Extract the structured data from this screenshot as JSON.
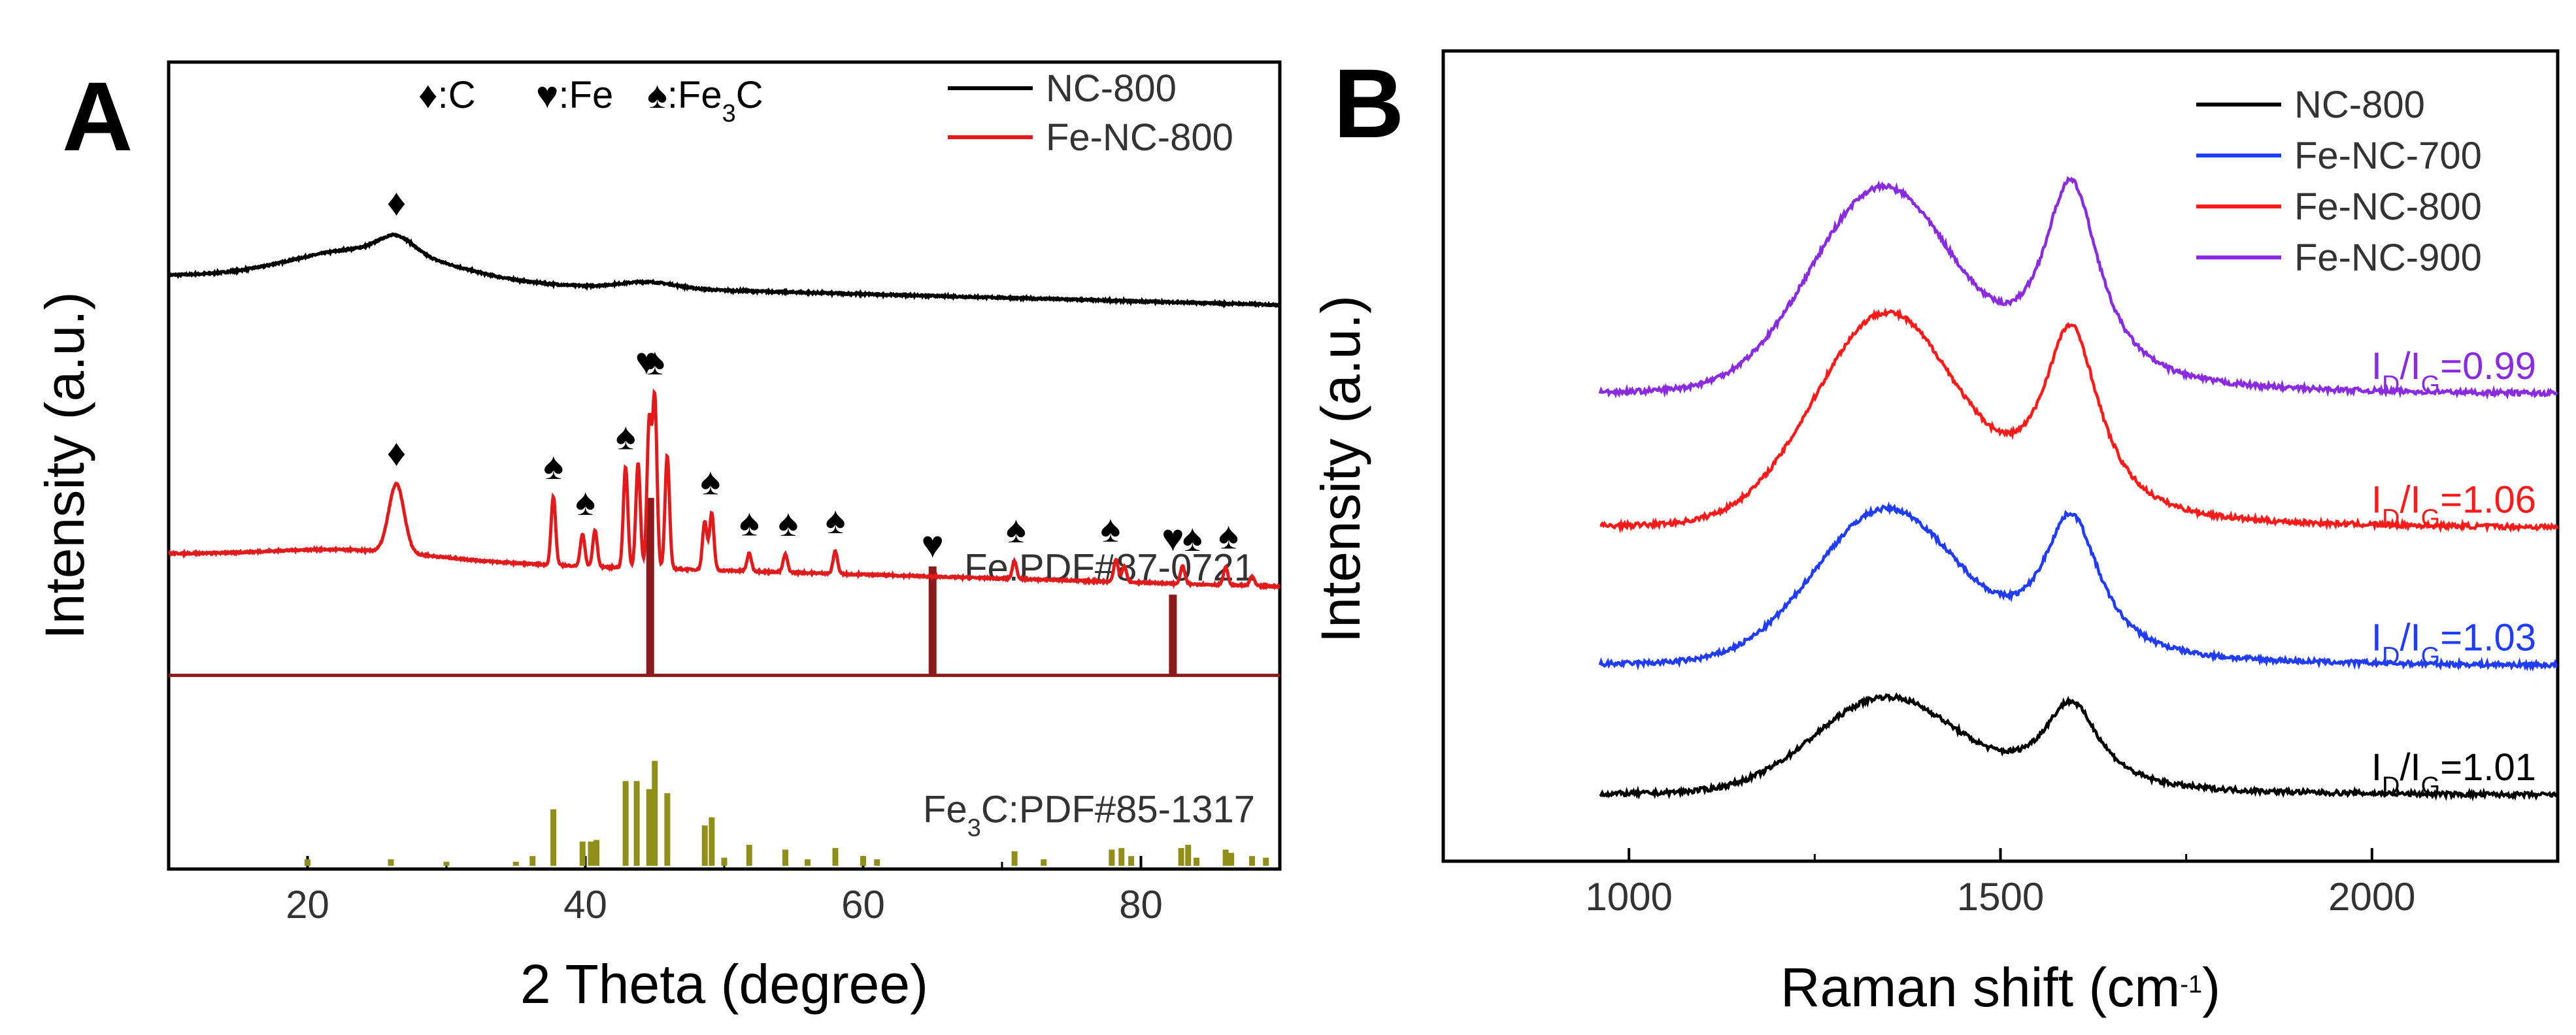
{
  "chart_data": [
    {
      "panel": "A",
      "type": "line",
      "xlabel": "2 Theta (degree)",
      "ylabel": "Intensity (a.u.)",
      "xlim": [
        10,
        90
      ],
      "xticks": [
        20,
        40,
        60,
        80
      ],
      "grid": false,
      "legend": {
        "placement": "top-right",
        "entries": [
          {
            "label": "NC-800",
            "color": "#000000"
          },
          {
            "label": "Fe-NC-800",
            "color": "#e31a1c"
          }
        ]
      },
      "marker_legend": [
        {
          "symbol": "♦",
          "label": ":C"
        },
        {
          "symbol": "♥",
          "label": ":Fe"
        },
        {
          "symbol": "♠",
          "label": ":Fe",
          "label_sub": "3",
          "label_tail": "C"
        }
      ],
      "series": [
        {
          "name": "NC-800",
          "color": "#000000",
          "offset": 0.735,
          "baseline": 0.0,
          "broad_peaks": [
            {
              "x": 24.5,
              "h": 0.04,
              "w": 5.5
            },
            {
              "x": 26.4,
              "h": 0.02,
              "w": 1.2
            },
            {
              "x": 44.5,
              "h": 0.008,
              "w": 2.0
            }
          ],
          "slope": -0.00045
        },
        {
          "name": "Fe-NC-800",
          "color": "#e31a1c",
          "offset": 0.39,
          "baseline": 0.0,
          "broad_peaks": [
            {
              "x": 23.0,
              "h": 0.012,
              "w": 6.0
            },
            {
              "x": 26.4,
              "h": 0.085,
              "w": 0.55
            }
          ],
          "sharp_peaks": [
            {
              "x": 37.7,
              "h": 0.085
            },
            {
              "x": 39.8,
              "h": 0.04
            },
            {
              "x": 40.7,
              "h": 0.045
            },
            {
              "x": 42.9,
              "h": 0.125
            },
            {
              "x": 43.8,
              "h": 0.13
            },
            {
              "x": 44.6,
              "h": 0.18
            },
            {
              "x": 45.0,
              "h": 0.21
            },
            {
              "x": 45.9,
              "h": 0.14
            },
            {
              "x": 48.6,
              "h": 0.06
            },
            {
              "x": 49.1,
              "h": 0.07
            },
            {
              "x": 51.8,
              "h": 0.022
            },
            {
              "x": 54.4,
              "h": 0.022
            },
            {
              "x": 58.0,
              "h": 0.028
            },
            {
              "x": 70.9,
              "h": 0.022
            },
            {
              "x": 78.2,
              "h": 0.028
            },
            {
              "x": 78.8,
              "h": 0.02
            },
            {
              "x": 83.0,
              "h": 0.022
            },
            {
              "x": 86.1,
              "h": 0.022
            },
            {
              "x": 88.0,
              "h": 0.012
            }
          ],
          "slope": -0.0005
        }
      ],
      "peak_markers": [
        {
          "x": 26.4,
          "symbol": "♦",
          "series": "NC-800"
        },
        {
          "x": 26.4,
          "symbol": "♦",
          "series": "Fe-NC-800"
        },
        {
          "x": 37.7,
          "symbol": "♠"
        },
        {
          "x": 40.0,
          "symbol": "♠"
        },
        {
          "x": 42.9,
          "symbol": "♠"
        },
        {
          "x": 44.4,
          "symbol": "♥"
        },
        {
          "x": 45.0,
          "symbol": "♠"
        },
        {
          "x": 49.0,
          "symbol": "♠"
        },
        {
          "x": 51.8,
          "symbol": "♠"
        },
        {
          "x": 54.6,
          "symbol": "♠"
        },
        {
          "x": 58.0,
          "symbol": "♠"
        },
        {
          "x": 65.0,
          "symbol": "♥"
        },
        {
          "x": 71.0,
          "symbol": "♠"
        },
        {
          "x": 77.8,
          "symbol": "♠"
        },
        {
          "x": 82.3,
          "symbol": "♥"
        },
        {
          "x": 83.7,
          "symbol": "♠"
        },
        {
          "x": 86.3,
          "symbol": "♠"
        }
      ],
      "reference_patterns": [
        {
          "label": "Fe:PDF#87-0721",
          "color": "#8b1a1a",
          "baseline": 0.24,
          "lines": [
            {
              "x": 44.67,
              "h": 0.22
            },
            {
              "x": 65.0,
              "h": 0.135
            },
            {
              "x": 82.3,
              "h": 0.1
            }
          ]
        },
        {
          "label_pre": "Fe",
          "label_sub": "3",
          "label_post": "C:PDF#85-1317",
          "color": "#8f8f1a",
          "baseline": 0.0,
          "lines": [
            {
              "x": 20.0,
              "h": 0.008
            },
            {
              "x": 26.0,
              "h": 0.008
            },
            {
              "x": 30.0,
              "h": 0.005
            },
            {
              "x": 35.0,
              "h": 0.005
            },
            {
              "x": 36.2,
              "h": 0.012
            },
            {
              "x": 37.7,
              "h": 0.07
            },
            {
              "x": 39.8,
              "h": 0.03
            },
            {
              "x": 40.4,
              "h": 0.03
            },
            {
              "x": 40.8,
              "h": 0.032
            },
            {
              "x": 42.9,
              "h": 0.105
            },
            {
              "x": 43.7,
              "h": 0.105
            },
            {
              "x": 44.6,
              "h": 0.095
            },
            {
              "x": 45.0,
              "h": 0.13
            },
            {
              "x": 45.9,
              "h": 0.09
            },
            {
              "x": 48.6,
              "h": 0.05
            },
            {
              "x": 49.1,
              "h": 0.06
            },
            {
              "x": 50.0,
              "h": 0.01
            },
            {
              "x": 51.8,
              "h": 0.026
            },
            {
              "x": 54.4,
              "h": 0.02
            },
            {
              "x": 56.0,
              "h": 0.008
            },
            {
              "x": 58.0,
              "h": 0.022
            },
            {
              "x": 60.0,
              "h": 0.012
            },
            {
              "x": 61.0,
              "h": 0.008
            },
            {
              "x": 70.9,
              "h": 0.018
            },
            {
              "x": 73.0,
              "h": 0.008
            },
            {
              "x": 77.9,
              "h": 0.02
            },
            {
              "x": 78.6,
              "h": 0.022
            },
            {
              "x": 79.3,
              "h": 0.012
            },
            {
              "x": 82.9,
              "h": 0.022
            },
            {
              "x": 83.4,
              "h": 0.026
            },
            {
              "x": 84.0,
              "h": 0.01
            },
            {
              "x": 86.1,
              "h": 0.02
            },
            {
              "x": 86.5,
              "h": 0.016
            },
            {
              "x": 88.0,
              "h": 0.012
            },
            {
              "x": 89.0,
              "h": 0.01
            }
          ]
        }
      ]
    },
    {
      "panel": "B",
      "type": "line",
      "xlabel": "Raman shift (cm",
      "xlabel_sup": "-1",
      "xlabel_tail": ")",
      "ylabel": "Intensity (a.u.)",
      "xlim": [
        750,
        2250
      ],
      "xticks": [
        1000,
        1500,
        2000
      ],
      "grid": false,
      "legend": {
        "placement": "top-right",
        "entries": [
          {
            "label": "NC-800",
            "color": "#000000"
          },
          {
            "label": "Fe-NC-700",
            "color": "#1f3cff"
          },
          {
            "label": "Fe-NC-800",
            "color": "#ff1a1a"
          },
          {
            "label": "Fe-NC-900",
            "color": "#8a2be2"
          }
        ]
      },
      "series": [
        {
          "name": "NC-800",
          "color": "#000000",
          "baseline": 0.08,
          "tail": 0.075,
          "D_height": 0.115,
          "G_height": 0.11,
          "D_pos": 1345,
          "G_pos": 1595,
          "ratio": {
            "pre": "I",
            "d": "D",
            "slash": "/I",
            "g": "G",
            "post": "=1.01"
          }
        },
        {
          "name": "Fe-NC-700",
          "color": "#1f3cff",
          "baseline": 0.24,
          "tail": 0.24,
          "D_height": 0.185,
          "G_height": 0.18,
          "D_pos": 1345,
          "G_pos": 1595,
          "ratio": {
            "pre": "I",
            "d": "D",
            "slash": "/I",
            "g": "G",
            "post": "=1.03"
          }
        },
        {
          "name": "Fe-NC-800",
          "color": "#ff1a1a",
          "baseline": 0.41,
          "tail": 0.41,
          "D_height": 0.255,
          "G_height": 0.24,
          "D_pos": 1345,
          "G_pos": 1595,
          "ratio": {
            "pre": "I",
            "d": "D",
            "slash": "/I",
            "g": "G",
            "post": "=1.06"
          }
        },
        {
          "name": "Fe-NC-900",
          "color": "#8a2be2",
          "baseline": 0.575,
          "tail": 0.575,
          "D_height": 0.245,
          "G_height": 0.255,
          "D_pos": 1340,
          "G_pos": 1595,
          "ratio": {
            "pre": "I",
            "d": "D",
            "slash": "/I",
            "g": "G",
            "post": "=0.99"
          }
        }
      ]
    }
  ]
}
